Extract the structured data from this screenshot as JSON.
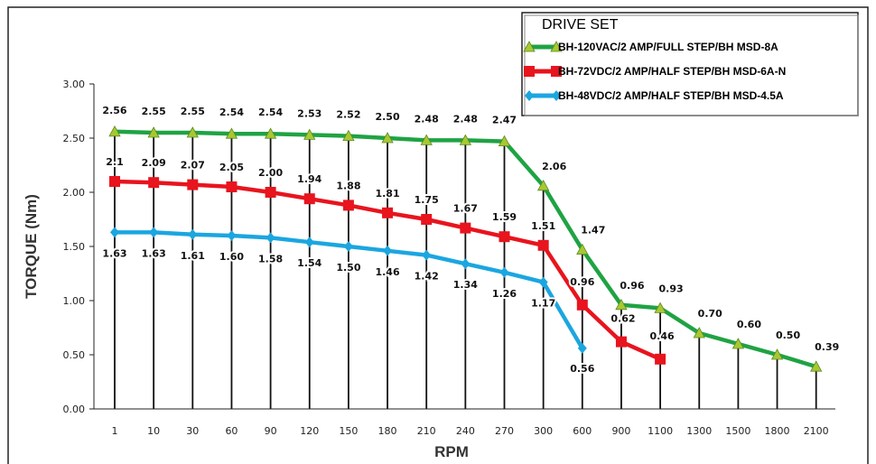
{
  "chart_data": {
    "type": "line",
    "xlabel": "RPM",
    "ylabel": "TORQUE (Nm)",
    "ylim": [
      0,
      3
    ],
    "yticks": [
      "0.00",
      "0.50",
      "1.00",
      "1.50",
      "2.00",
      "2.50",
      "3.00"
    ],
    "categories": [
      "1",
      "10",
      "30",
      "60",
      "90",
      "120",
      "150",
      "180",
      "210",
      "240",
      "270",
      "300",
      "600",
      "900",
      "1100",
      "1300",
      "1500",
      "1800",
      "2100"
    ],
    "grid": "vertical drop lines at each category",
    "legend": {
      "title": "DRIVE SET",
      "position": "top-right"
    },
    "series": [
      {
        "name": "BH-120VAC/2 AMP/FULL STEP/BH MSD-8A",
        "color": "#1fa343",
        "marker": "triangle",
        "marker_color": "#a8c832",
        "values": [
          2.56,
          2.55,
          2.55,
          2.54,
          2.54,
          2.53,
          2.52,
          2.5,
          2.48,
          2.48,
          2.47,
          2.06,
          1.47,
          0.96,
          0.93,
          0.7,
          0.6,
          0.5,
          0.39
        ],
        "labels": [
          "2.56",
          "2.55",
          "2.55",
          "2.54",
          "2.54",
          "2.53",
          "2.52",
          "2.50",
          "2.48",
          "2.48",
          "2.47",
          "2.06",
          "1.47",
          "0.96",
          "0.93",
          "0.70",
          "0.60",
          "0.50",
          "0.39"
        ]
      },
      {
        "name": "BH-72VDC/2 AMP/HALF STEP/BH MSD-6A-N",
        "color": "#e8141e",
        "marker": "square",
        "marker_color": "#e8141e",
        "values": [
          2.1,
          2.09,
          2.07,
          2.05,
          2.0,
          1.94,
          1.88,
          1.81,
          1.75,
          1.67,
          1.59,
          1.51,
          0.96,
          0.62,
          0.46,
          null,
          null,
          null,
          null
        ],
        "labels": [
          "2.1",
          "2.09",
          "2.07",
          "2.05",
          "2.00",
          "1.94",
          "1.88",
          "1.81",
          "1.75",
          "1.67",
          "1.59",
          "1.51",
          "0.96",
          "0.62",
          "0.46",
          null,
          null,
          null,
          null
        ]
      },
      {
        "name": "BH-48VDC/2 AMP/HALF STEP/BH MSD-4.5A",
        "color": "#1ba6e0",
        "marker": "diamond",
        "marker_color": "#1ba6e0",
        "values": [
          1.63,
          1.63,
          1.61,
          1.6,
          1.58,
          1.54,
          1.5,
          1.46,
          1.42,
          1.34,
          1.26,
          1.17,
          0.56,
          null,
          null,
          null,
          null,
          null,
          null
        ],
        "labels": [
          "1.63",
          "1.63",
          "1.61",
          "1.60",
          "1.58",
          "1.54",
          "1.50",
          "1.46",
          "1.42",
          "1.34",
          "1.26",
          "1.17",
          "0.56",
          null,
          null,
          null,
          null,
          null,
          null
        ]
      }
    ]
  }
}
